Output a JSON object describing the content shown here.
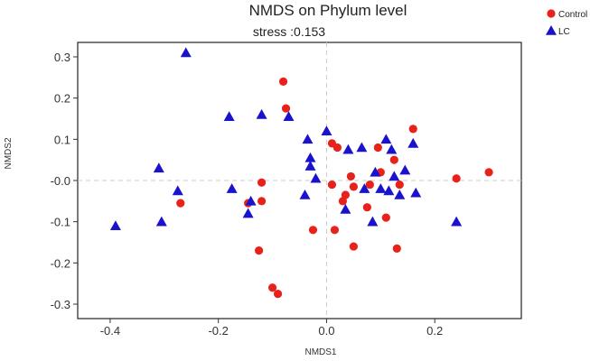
{
  "chart_data": {
    "type": "scatter",
    "title": "NMDS on Phylum level",
    "subtitle": "stress :0.153",
    "xlabel": "NMDS1",
    "ylabel": "NMDS2",
    "xlim": [
      -0.46,
      0.36
    ],
    "ylim": [
      -0.335,
      0.335
    ],
    "x_ticks": [
      -0.4,
      -0.2,
      0.0,
      0.2
    ],
    "x_tick_labels": [
      "-0.4",
      "-0.2",
      "0.0",
      "0.2"
    ],
    "y_ticks": [
      0.3,
      0.2,
      0.1,
      0.0,
      -0.1,
      -0.2,
      -0.3
    ],
    "y_tick_labels": [
      "0.3",
      "0.2",
      "0.1",
      "-0.0",
      "-0.1",
      "-0.2",
      "-0.3"
    ],
    "reference_lines": {
      "x": 0,
      "y": 0,
      "style": "dashed"
    },
    "grid": false,
    "legend_position": "top-right",
    "series": [
      {
        "name": "Control",
        "marker": "circle",
        "color": "#e8221a",
        "points": [
          [
            -0.08,
            0.24
          ],
          [
            -0.075,
            0.175
          ],
          [
            -0.27,
            -0.055
          ],
          [
            -0.12,
            -0.005
          ],
          [
            -0.145,
            -0.055
          ],
          [
            -0.12,
            -0.05
          ],
          [
            -0.125,
            -0.17
          ],
          [
            -0.1,
            -0.26
          ],
          [
            -0.09,
            -0.275
          ],
          [
            -0.025,
            -0.12
          ],
          [
            0.01,
            0.09
          ],
          [
            0.02,
            0.08
          ],
          [
            0.01,
            -0.01
          ],
          [
            0.015,
            -0.12
          ],
          [
            0.03,
            -0.05
          ],
          [
            0.035,
            -0.035
          ],
          [
            0.045,
            0.01
          ],
          [
            0.05,
            -0.015
          ],
          [
            0.05,
            -0.16
          ],
          [
            0.075,
            -0.065
          ],
          [
            0.08,
            -0.01
          ],
          [
            0.095,
            0.08
          ],
          [
            0.1,
            0.02
          ],
          [
            0.11,
            -0.09
          ],
          [
            0.125,
            0.05
          ],
          [
            0.13,
            -0.165
          ],
          [
            0.135,
            -0.01
          ],
          [
            0.16,
            0.125
          ],
          [
            0.24,
            0.005
          ],
          [
            0.3,
            0.02
          ]
        ]
      },
      {
        "name": "LC",
        "marker": "triangle",
        "color": "#1a12cc",
        "points": [
          [
            -0.39,
            -0.11
          ],
          [
            -0.31,
            0.03
          ],
          [
            -0.305,
            -0.1
          ],
          [
            -0.275,
            -0.025
          ],
          [
            -0.26,
            0.31
          ],
          [
            -0.18,
            0.155
          ],
          [
            -0.175,
            -0.02
          ],
          [
            -0.145,
            -0.08
          ],
          [
            -0.14,
            -0.05
          ],
          [
            -0.12,
            0.16
          ],
          [
            -0.07,
            0.155
          ],
          [
            -0.04,
            -0.035
          ],
          [
            -0.035,
            0.1
          ],
          [
            -0.03,
            0.055
          ],
          [
            -0.03,
            0.035
          ],
          [
            -0.02,
            0.005
          ],
          [
            0.0,
            0.12
          ],
          [
            0.035,
            -0.07
          ],
          [
            0.04,
            0.075
          ],
          [
            0.065,
            0.08
          ],
          [
            0.07,
            -0.02
          ],
          [
            0.085,
            -0.1
          ],
          [
            0.09,
            0.02
          ],
          [
            0.1,
            -0.02
          ],
          [
            0.11,
            0.1
          ],
          [
            0.115,
            -0.025
          ],
          [
            0.12,
            0.075
          ],
          [
            0.125,
            0.01
          ],
          [
            0.135,
            -0.035
          ],
          [
            0.145,
            0.025
          ],
          [
            0.16,
            0.09
          ],
          [
            0.165,
            -0.03
          ],
          [
            0.24,
            -0.1
          ]
        ]
      }
    ]
  }
}
